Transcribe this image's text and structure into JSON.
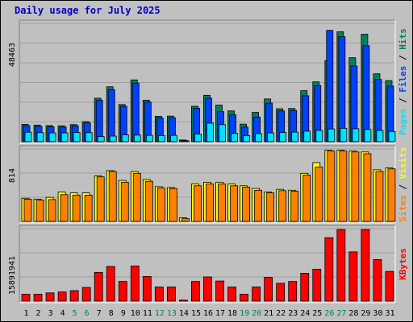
{
  "colors": {
    "hits": "#00805c",
    "files": "#0040ff",
    "pages": "#00e0ff",
    "visits": "#ffff00",
    "sites": "#ff8000",
    "kbytes": "#ff0000",
    "weekday": "#000000",
    "weekend": "#00805c"
  },
  "chart_data": {
    "type": "bar",
    "title": "Daily usage for July 2025",
    "categories": [
      "1",
      "2",
      "3",
      "4",
      "5",
      "6",
      "7",
      "8",
      "9",
      "10",
      "11",
      "12",
      "13",
      "14",
      "15",
      "16",
      "17",
      "18",
      "19",
      "20",
      "21",
      "22",
      "23",
      "24",
      "25",
      "26",
      "27",
      "28",
      "29",
      "30",
      "31"
    ],
    "weekend": [
      false,
      false,
      false,
      false,
      true,
      true,
      false,
      false,
      false,
      false,
      false,
      true,
      true,
      false,
      false,
      false,
      false,
      false,
      true,
      true,
      false,
      false,
      false,
      false,
      false,
      true,
      true,
      false,
      false,
      false,
      false
    ],
    "panels": [
      {
        "ymax_label": "48463",
        "ymax": 48463,
        "series": [
          {
            "name": "Hits",
            "values": [
              7100,
              6800,
              6600,
              6500,
              7000,
              8200,
              17800,
              22500,
              15200,
              25300,
              17000,
              10400,
              10500,
              700,
              14500,
              19000,
              15000,
              12600,
              7200,
              12000,
              17500,
              13500,
              13600,
              20900,
              24500,
              33200,
              45000,
              34400,
              44000,
              27800,
              25000
            ]
          },
          {
            "name": "Files",
            "values": [
              6600,
              6300,
              6100,
              6000,
              6500,
              7700,
              17000,
              21300,
              14500,
              24000,
              16200,
              9700,
              9800,
              500,
              13700,
              17800,
              12300,
              11000,
              6000,
              10100,
              15800,
              12600,
              12800,
              18800,
              23000,
              45600,
              43000,
              31000,
              39300,
              25500,
              22800
            ]
          },
          {
            "name": "Pages",
            "values": [
              3900,
              3700,
              3600,
              3600,
              3800,
              3700,
              2100,
              2300,
              2800,
              2700,
              2600,
              2500,
              2600,
              300,
              3100,
              7600,
              7000,
              3400,
              2500,
              3300,
              3600,
              3800,
              3900,
              4300,
              4600,
              5200,
              5500,
              5300,
              5000,
              4600,
              4200
            ]
          }
        ]
      },
      {
        "ymax_label": "814",
        "ymax": 814,
        "series": [
          {
            "name": "Visits",
            "values": [
              260,
              250,
              270,
              330,
              320,
              320,
              510,
              570,
              460,
              560,
              470,
              390,
              380,
              40,
              420,
              440,
              440,
              420,
              400,
              370,
              330,
              360,
              350,
              540,
              660,
              800,
              800,
              790,
              780,
              580,
              600
            ]
          },
          {
            "name": "Sites",
            "values": [
              250,
              240,
              245,
              300,
              295,
              295,
              500,
              560,
              440,
              540,
              450,
              375,
              370,
              30,
              400,
              420,
              420,
              400,
              385,
              350,
              320,
              345,
              340,
              520,
              610,
              790,
              790,
              780,
              760,
              560,
              590
            ]
          }
        ]
      },
      {
        "ymax_label": "15891941",
        "ymax": 15891941,
        "series": [
          {
            "name": "KBytes",
            "values": [
              1500000,
              1500000,
              1800000,
              2000000,
              2300000,
              3000000,
              6300000,
              7600000,
              4300000,
              7700000,
              5400000,
              3100000,
              3100000,
              200000,
              4300000,
              5300000,
              4400000,
              3100000,
              1500000,
              3100000,
              5200000,
              3900000,
              4300000,
              6100000,
              7000000,
              13900000,
              15700000,
              10800000,
              15700000,
              9100000,
              6500000
            ]
          }
        ]
      }
    ],
    "side_labels": {
      "top": [
        "Pages",
        "Files",
        "Hits"
      ],
      "middle": [
        "Sites",
        "Visits"
      ],
      "bottom": [
        "KBytes"
      ]
    },
    "grid": true
  }
}
